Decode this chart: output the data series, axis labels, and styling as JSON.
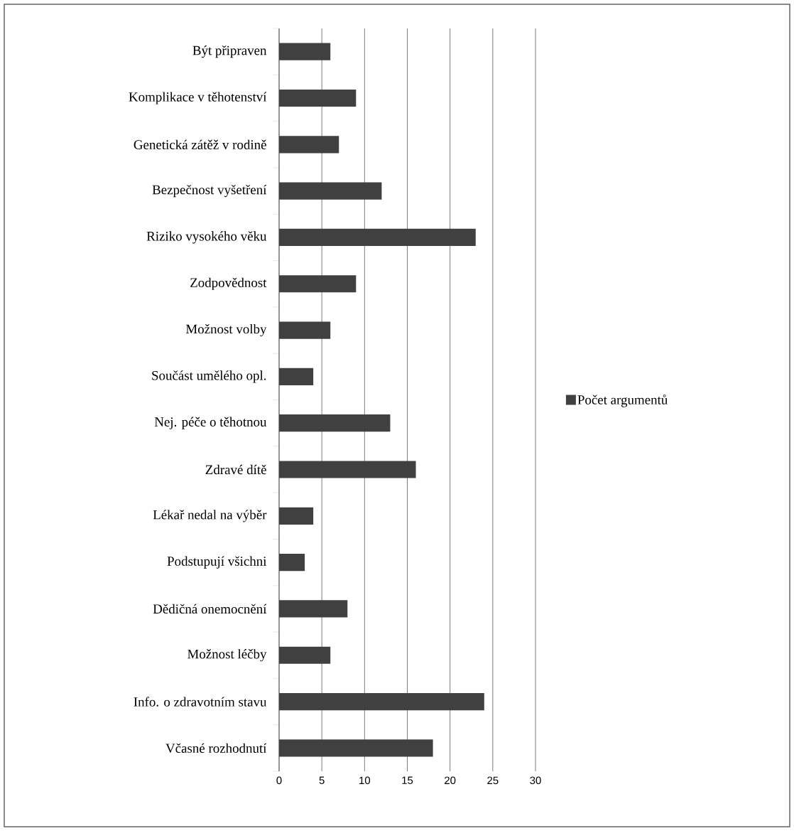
{
  "chart_data": {
    "type": "bar",
    "orientation": "horizontal",
    "categories": [
      "Být připraven",
      "Komplikace v těhotenství",
      "Genetická zátěž v rodině",
      "Bezpečnost vyšetření",
      "Riziko vysokého věku",
      "Zodpovědnost",
      "Možnost volby",
      "Součást umělého opl.",
      "Nej. péče o těhotnou",
      "Zdravé dítě",
      "Lékař nedal na výběr",
      "Podstupují všichni",
      "Dědičná onemocnění",
      "Možnost léčby",
      "Info. o zdravotním stavu",
      "Včasné rozhodnutí"
    ],
    "series": [
      {
        "name": "Počet argumentů",
        "color": "#404040",
        "values": [
          6,
          9,
          7,
          12,
          23,
          9,
          6,
          4,
          13,
          16,
          4,
          3,
          8,
          6,
          24,
          18
        ]
      }
    ],
    "xlim": [
      0,
      30
    ],
    "xticks": [
      0,
      5,
      10,
      15,
      20,
      25,
      30
    ],
    "grid": "x",
    "legend": "right"
  }
}
